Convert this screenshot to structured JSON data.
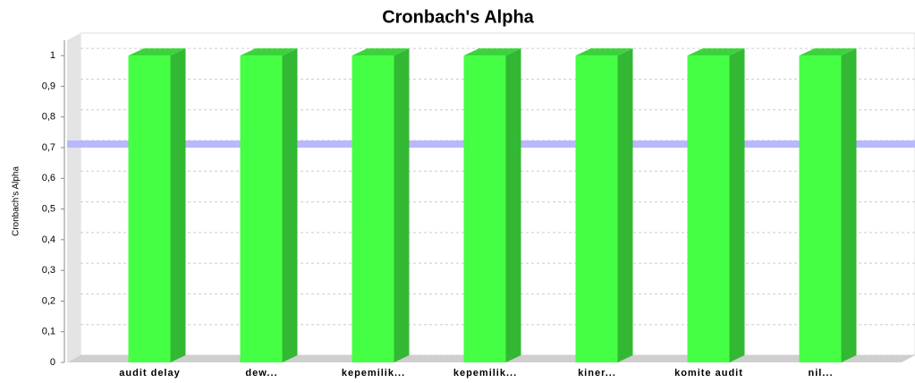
{
  "chart_data": {
    "type": "bar3d",
    "title": "Cronbach's Alpha",
    "y_label": "Cronbach's Alpha",
    "categories": [
      "audit delay",
      "dew...",
      "kepemilik...",
      "kepemilik...",
      "kiner...",
      "komite audit",
      "nil..."
    ],
    "values": [
      1,
      1,
      1,
      1,
      1,
      1,
      1
    ],
    "color": "#44ff44",
    "reference_line": 0.7,
    "reference_color": "#b8b8ff",
    "ylim": [
      0,
      1.05
    ],
    "yticks": [
      0,
      {
        "value": 0.1,
        "label": "0,1"
      },
      {
        "value": 0.2,
        "label": "0,2"
      },
      {
        "value": 0.3,
        "label": "0,3"
      },
      {
        "value": 0.4,
        "label": "0,4"
      },
      {
        "value": 0.5,
        "label": "0,5"
      },
      {
        "value": 0.6,
        "label": "0,6"
      },
      {
        "value": 0.7,
        "label": "0,7"
      },
      {
        "value": 0.8,
        "label": "0,8"
      },
      {
        "value": 0.9,
        "label": "0,9"
      },
      1
    ],
    "grid": true
  }
}
